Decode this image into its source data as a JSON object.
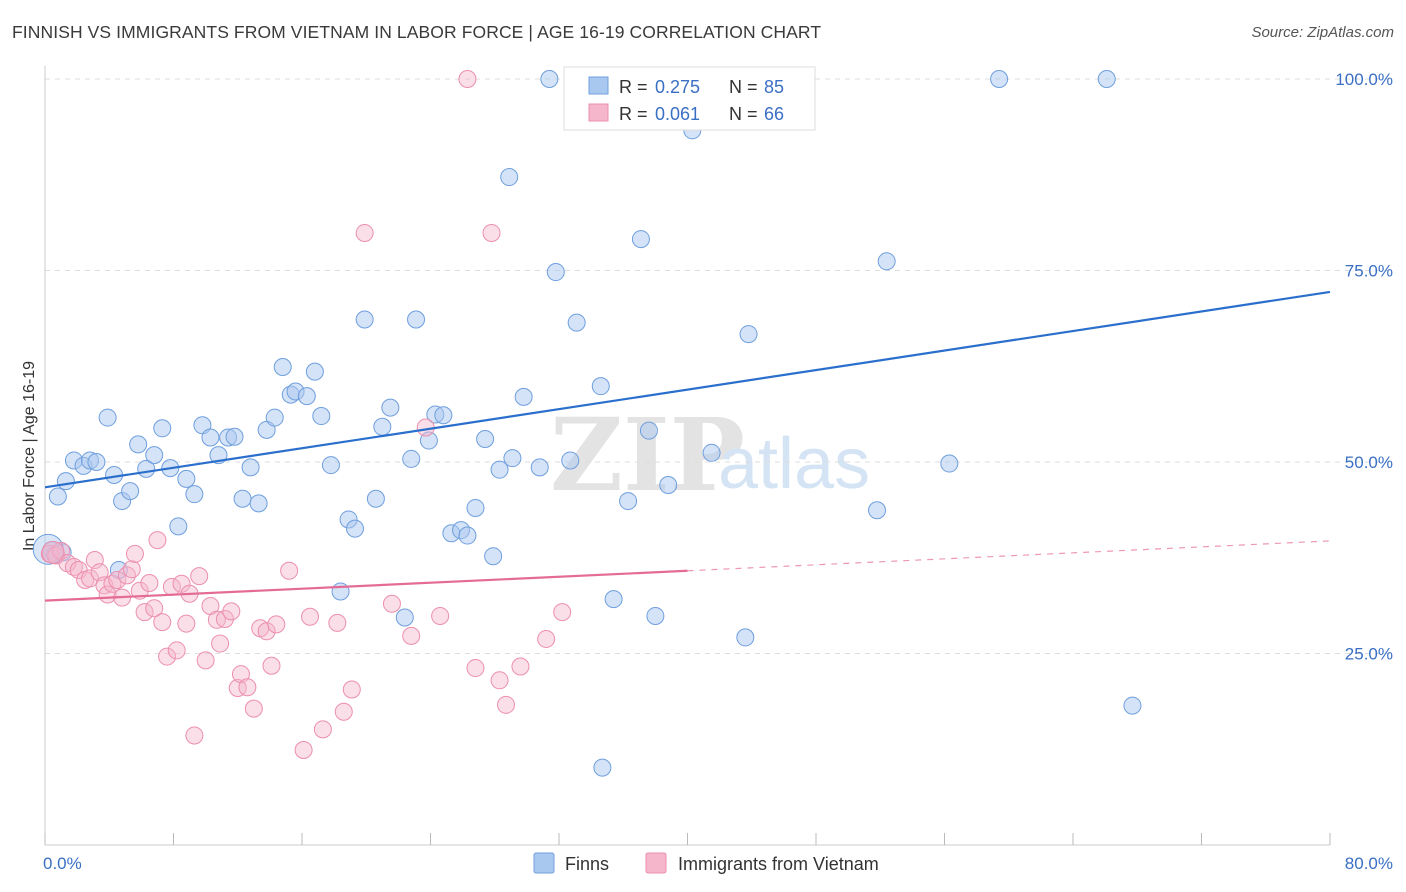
{
  "title": "FINNISH VS IMMIGRANTS FROM VIETNAM IN LABOR FORCE | AGE 16-19 CORRELATION CHART",
  "source": "Source: ZipAtlas.com",
  "watermark": {
    "zip": "ZIP",
    "atlas": "atlas"
  },
  "legend_box": {
    "finns": {
      "r_label": "R = ",
      "r_value": "0.275",
      "n_label": "N = ",
      "n_value": "85"
    },
    "vietnam": {
      "r_label": "R = ",
      "r_value": "0.061",
      "n_label": "N = ",
      "n_value": "66"
    }
  },
  "bottom_legend": {
    "finns": "Finns",
    "vietnam": "Immigrants from Vietnam"
  },
  "colors": {
    "finns_fill": "#a9c8ef",
    "finns_stroke": "#6f9fde",
    "finns_line": "#2a6fcc",
    "vietnam_fill": "#f5b6cb",
    "vietnam_stroke": "#ec8fae",
    "vietnam_line": "#e46b96",
    "axis_text": "#3a6fc4",
    "grid": "#dddddd"
  },
  "chart_data": {
    "type": "scatter",
    "title": "FINNISH VS IMMIGRANTS FROM VIETNAM IN LABOR FORCE | AGE 16-19 CORRELATION CHART",
    "xlabel": "",
    "ylabel": "In Labor Force | Age 16-19",
    "xlim": [
      0,
      80
    ],
    "ylim": [
      0,
      105
    ],
    "x_tick_labels": [
      "0.0%",
      "80.0%"
    ],
    "y_ticks": [
      25,
      50,
      75,
      100
    ],
    "y_tick_labels": [
      "25.0%",
      "50.0%",
      "75.0%",
      "100.0%"
    ],
    "series": [
      {
        "name": "Finns",
        "r": 0.275,
        "n": 85,
        "trend": {
          "x0": 0,
          "y0": 46.7,
          "x1": 80,
          "y1": 72.2,
          "solid_to": 80
        },
        "points": [
          [
            0.4,
            38.5
          ],
          [
            0.8,
            45.5
          ],
          [
            1.3,
            47.5
          ],
          [
            1.8,
            50.2
          ],
          [
            2.4,
            49.5
          ],
          [
            2.8,
            50.2
          ],
          [
            3.2,
            50.0
          ],
          [
            3.9,
            55.8
          ],
          [
            4.3,
            48.3
          ],
          [
            4.8,
            44.9
          ],
          [
            5.3,
            46.2
          ],
          [
            5.8,
            52.3
          ],
          [
            6.3,
            49.1
          ],
          [
            6.8,
            50.9
          ],
          [
            7.3,
            54.4
          ],
          [
            7.8,
            49.2
          ],
          [
            8.3,
            41.6
          ],
          [
            8.8,
            47.8
          ],
          [
            9.3,
            45.8
          ],
          [
            9.8,
            54.8
          ],
          [
            10.3,
            53.2
          ],
          [
            10.8,
            50.9
          ],
          [
            11.4,
            53.2
          ],
          [
            11.8,
            53.3
          ],
          [
            12.3,
            45.2
          ],
          [
            12.8,
            49.3
          ],
          [
            13.3,
            44.6
          ],
          [
            13.8,
            54.2
          ],
          [
            14.3,
            55.8
          ],
          [
            14.8,
            62.4
          ],
          [
            15.3,
            58.8
          ],
          [
            15.6,
            59.2
          ],
          [
            16.3,
            58.6
          ],
          [
            16.8,
            61.8
          ],
          [
            17.2,
            56.0
          ],
          [
            17.8,
            49.6
          ],
          [
            18.4,
            33.1
          ],
          [
            18.9,
            42.5
          ],
          [
            19.3,
            41.3
          ],
          [
            19.9,
            68.6
          ],
          [
            20.6,
            45.2
          ],
          [
            21.0,
            54.6
          ],
          [
            21.5,
            57.1
          ],
          [
            22.4,
            29.7
          ],
          [
            22.8,
            50.4
          ],
          [
            23.1,
            68.6
          ],
          [
            23.9,
            52.8
          ],
          [
            24.3,
            56.2
          ],
          [
            24.8,
            56.1
          ],
          [
            25.3,
            40.7
          ],
          [
            25.9,
            41.1
          ],
          [
            26.3,
            40.4
          ],
          [
            26.8,
            44.0
          ],
          [
            27.4,
            53.0
          ],
          [
            27.9,
            37.7
          ],
          [
            28.3,
            49.0
          ],
          [
            28.9,
            87.2
          ],
          [
            29.1,
            50.5
          ],
          [
            29.8,
            58.5
          ],
          [
            30.8,
            49.3
          ],
          [
            31.4,
            100.0
          ],
          [
            31.8,
            74.8
          ],
          [
            32.7,
            50.2
          ],
          [
            33.1,
            68.2
          ],
          [
            34.6,
            59.9
          ],
          [
            34.7,
            10.1
          ],
          [
            35.4,
            32.1
          ],
          [
            36.3,
            44.9
          ],
          [
            37.1,
            79.1
          ],
          [
            37.6,
            54.1
          ],
          [
            38.0,
            29.9
          ],
          [
            38.8,
            47.0
          ],
          [
            40.3,
            93.3
          ],
          [
            41.5,
            51.2
          ],
          [
            43.6,
            27.1
          ],
          [
            43.8,
            66.7
          ],
          [
            51.8,
            43.7
          ],
          [
            52.4,
            76.2
          ],
          [
            56.3,
            49.8
          ],
          [
            59.4,
            100.0
          ],
          [
            66.1,
            100.0
          ],
          [
            67.7,
            18.2
          ],
          [
            1.1,
            38.2
          ],
          [
            0.6,
            37.9
          ],
          [
            4.6,
            35.9
          ]
        ]
      },
      {
        "name": "Immigrants from Vietnam",
        "r": 0.061,
        "n": 66,
        "trend": {
          "x0": 0,
          "y0": 31.9,
          "x1": 80,
          "y1": 39.7,
          "solid_to": 40
        },
        "points": [
          [
            0.3,
            38.0
          ],
          [
            0.7,
            37.8
          ],
          [
            1.0,
            38.4
          ],
          [
            1.4,
            36.8
          ],
          [
            1.8,
            36.3
          ],
          [
            2.1,
            35.9
          ],
          [
            2.5,
            34.6
          ],
          [
            2.8,
            34.8
          ],
          [
            3.1,
            37.2
          ],
          [
            3.4,
            35.6
          ],
          [
            3.7,
            33.9
          ],
          [
            3.9,
            32.7
          ],
          [
            4.2,
            34.1
          ],
          [
            4.5,
            34.6
          ],
          [
            4.8,
            32.3
          ],
          [
            5.1,
            35.2
          ],
          [
            5.4,
            36.0
          ],
          [
            5.6,
            38.0
          ],
          [
            5.9,
            33.2
          ],
          [
            6.2,
            30.4
          ],
          [
            6.5,
            34.2
          ],
          [
            6.8,
            30.9
          ],
          [
            7.0,
            39.8
          ],
          [
            7.3,
            29.1
          ],
          [
            7.6,
            24.6
          ],
          [
            7.9,
            33.7
          ],
          [
            8.2,
            25.4
          ],
          [
            8.5,
            34.1
          ],
          [
            8.8,
            28.9
          ],
          [
            9.0,
            32.8
          ],
          [
            9.3,
            14.3
          ],
          [
            9.6,
            35.1
          ],
          [
            10.0,
            24.1
          ],
          [
            10.3,
            31.2
          ],
          [
            10.7,
            29.4
          ],
          [
            10.9,
            26.3
          ],
          [
            11.2,
            29.5
          ],
          [
            11.6,
            30.5
          ],
          [
            12.0,
            20.5
          ],
          [
            12.2,
            22.3
          ],
          [
            12.6,
            20.6
          ],
          [
            13.0,
            17.8
          ],
          [
            13.4,
            28.3
          ],
          [
            13.8,
            27.9
          ],
          [
            14.1,
            23.4
          ],
          [
            14.4,
            28.8
          ],
          [
            15.2,
            35.8
          ],
          [
            16.1,
            12.4
          ],
          [
            16.5,
            29.8
          ],
          [
            17.3,
            15.1
          ],
          [
            18.2,
            29.0
          ],
          [
            18.6,
            17.4
          ],
          [
            19.1,
            20.3
          ],
          [
            19.9,
            79.9
          ],
          [
            21.6,
            31.5
          ],
          [
            22.8,
            27.3
          ],
          [
            23.7,
            54.5
          ],
          [
            24.6,
            29.9
          ],
          [
            26.3,
            100.0
          ],
          [
            26.8,
            23.1
          ],
          [
            27.8,
            79.9
          ],
          [
            28.3,
            21.5
          ],
          [
            28.7,
            18.3
          ],
          [
            29.6,
            23.3
          ],
          [
            31.2,
            26.9
          ],
          [
            32.2,
            30.4
          ]
        ]
      }
    ]
  }
}
